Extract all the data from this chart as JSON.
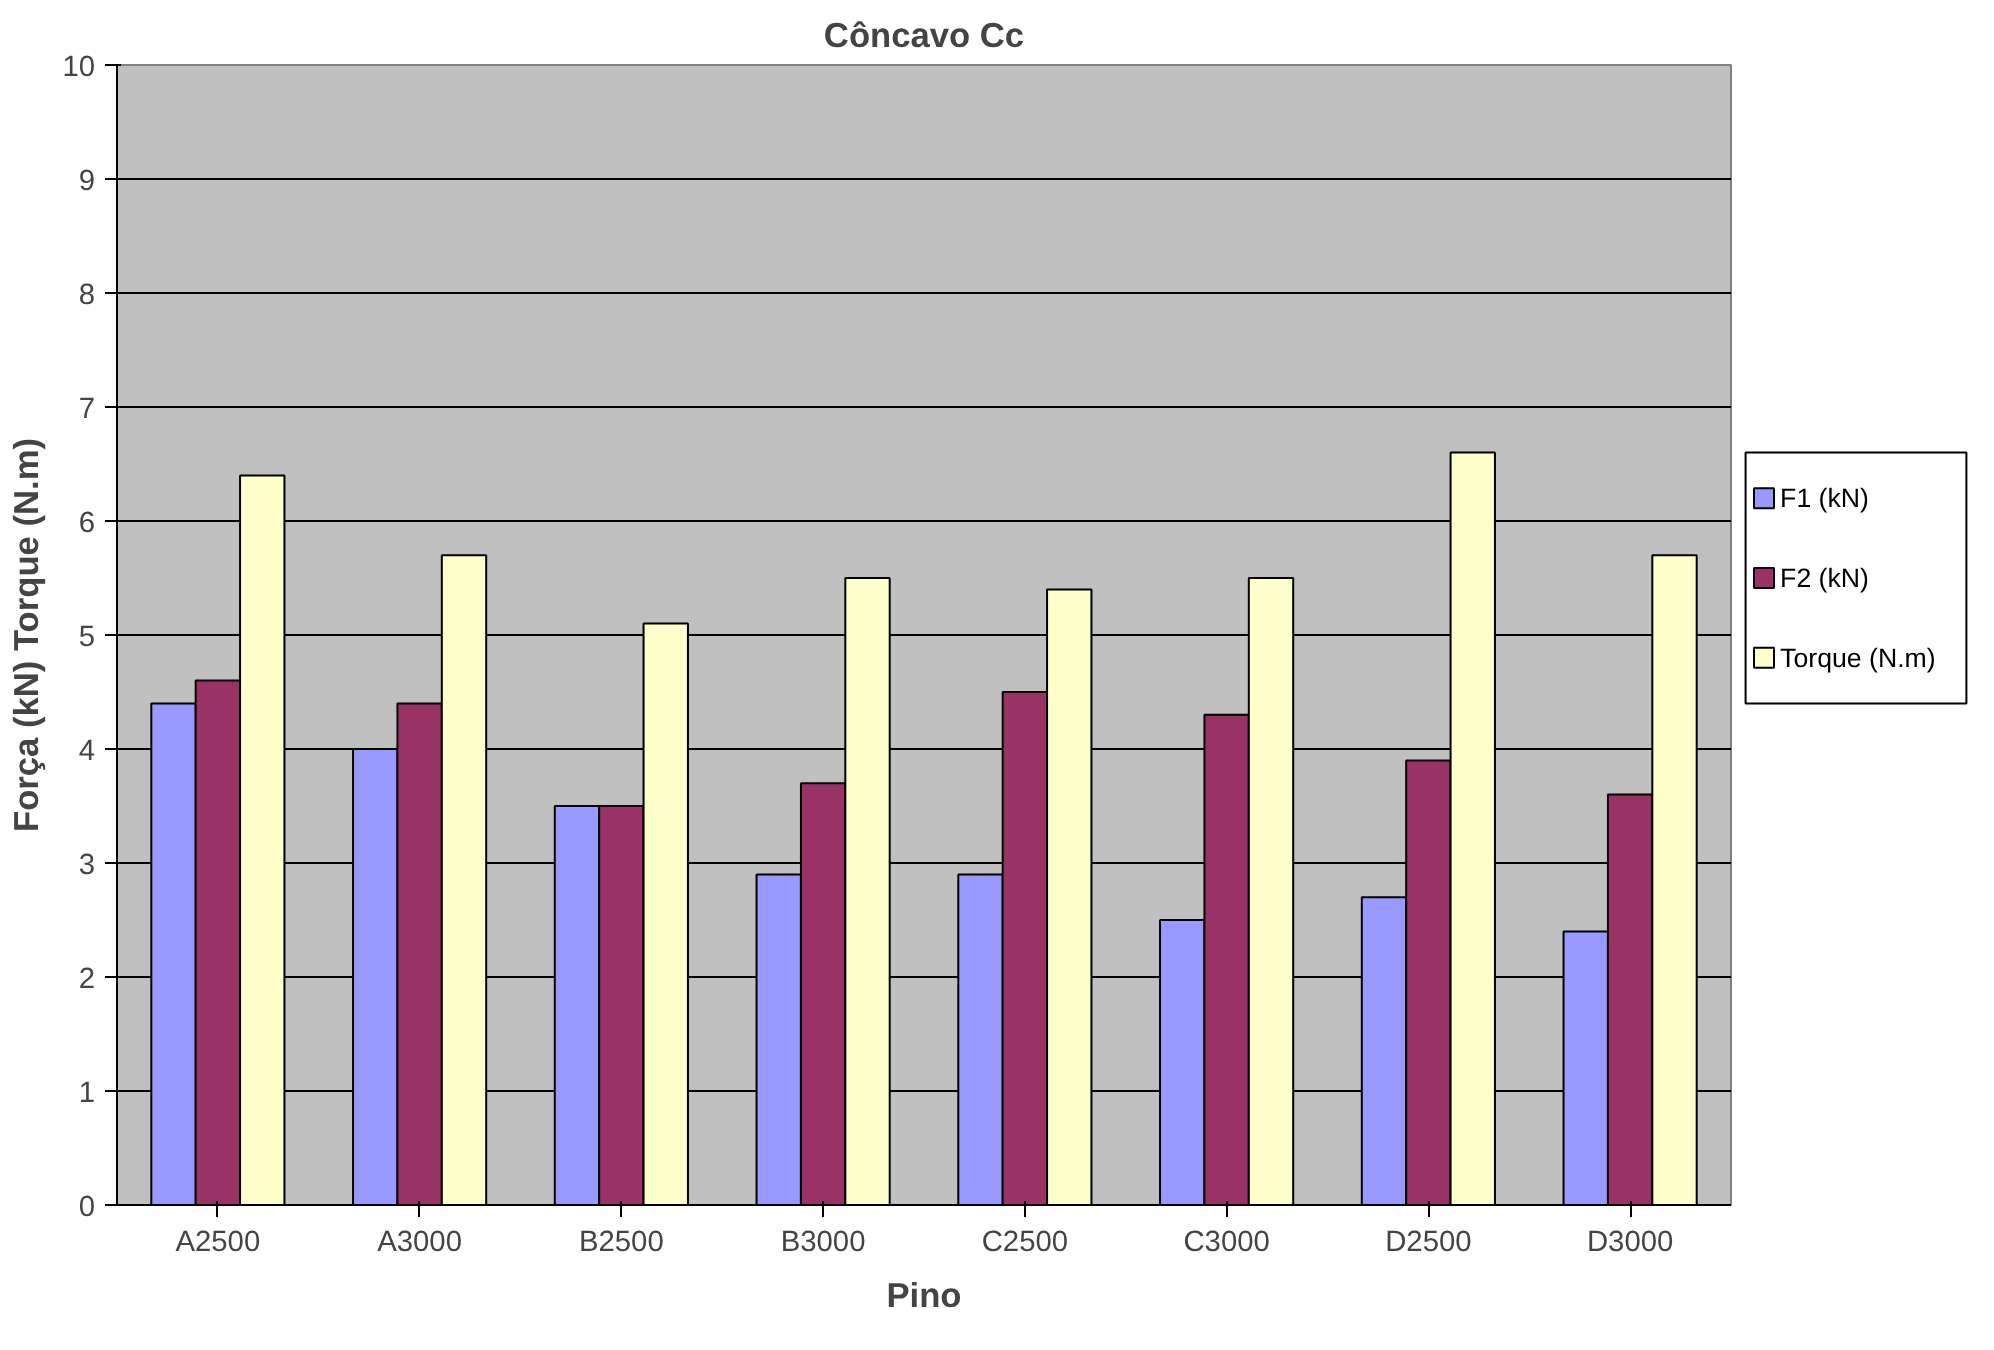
{
  "chart_data": {
    "type": "bar",
    "title": "Côncavo Cc",
    "xlabel": "Pino",
    "ylabel": "Força (kN) Torque (N.m)",
    "categories": [
      "A2500",
      "A3000",
      "B2500",
      "B3000",
      "C2500",
      "C3000",
      "D2500",
      "D3000"
    ],
    "series": [
      {
        "name": "F1 (kN)",
        "color": "#9999ff",
        "values": [
          4.4,
          4.0,
          3.5,
          2.9,
          2.9,
          2.5,
          2.7,
          2.4
        ]
      },
      {
        "name": "F2 (kN)",
        "color": "#993366",
        "values": [
          4.6,
          4.4,
          3.5,
          3.7,
          4.5,
          4.3,
          3.9,
          3.6
        ]
      },
      {
        "name": "Torque (N.m)",
        "color": "#ffffcc",
        "values": [
          6.4,
          5.7,
          5.1,
          5.5,
          5.4,
          5.5,
          6.6,
          5.7
        ]
      }
    ],
    "ylim": [
      0,
      10
    ],
    "yticks": [
      0,
      1,
      2,
      3,
      4,
      5,
      6,
      7,
      8,
      9,
      10
    ],
    "grid": "y",
    "legend": "right"
  }
}
